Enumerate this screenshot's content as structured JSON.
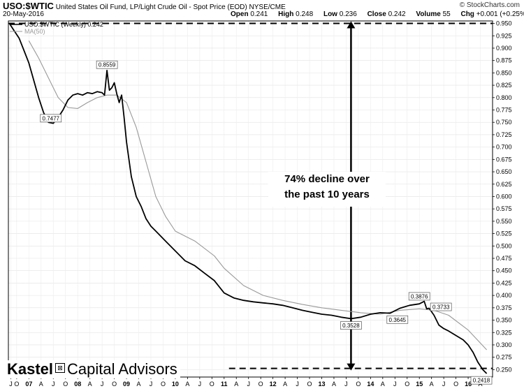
{
  "header": {
    "ticker": "USO:$WTIC",
    "description": "United States Oil Fund, LP/Light Crude Oil - Spot Price (EOD)",
    "exchange": "NYSE/CME",
    "date": "20-May-2016",
    "credit": "© StockCharts.com",
    "open_label": "Open",
    "open": "0.241",
    "high_label": "High",
    "high": "0.248",
    "low_label": "Low",
    "low": "0.236",
    "close_label": "Close",
    "close": "0.242",
    "volume_label": "Volume",
    "volume": "55",
    "chg_label": "Chg",
    "chg": "+0.001 (+0.25%)"
  },
  "legend": {
    "series_label": "USO:$WTIC (Weekly) 0.242",
    "ma_label": "MA(50)"
  },
  "annotation": {
    "line1": "74% decline over",
    "line2": "the past 10 years"
  },
  "logo": {
    "brand": "Kastel",
    "glyph": "⊠",
    "tagline": "Capital Advisors"
  },
  "colors": {
    "price": "#000000",
    "moving_average": "#999999",
    "background": "#ffffff"
  },
  "chart_data": {
    "type": "line",
    "ylim": [
      0.235,
      0.955
    ],
    "yticks": [
      0.25,
      0.275,
      0.3,
      0.325,
      0.35,
      0.375,
      0.4,
      0.425,
      0.45,
      0.475,
      0.5,
      0.525,
      0.55,
      0.575,
      0.6,
      0.625,
      0.65,
      0.675,
      0.7,
      0.725,
      0.75,
      0.775,
      0.8,
      0.825,
      0.85,
      0.875,
      0.9,
      0.925,
      0.95
    ],
    "ytick_labels": [
      "0.250",
      "0.275",
      "0.300",
      "0.325",
      "0.350",
      "0.375",
      "0.400",
      "0.425",
      "0.450",
      "0.475",
      "0.500",
      "0.525",
      "0.550",
      "0.575",
      "0.600",
      "0.625",
      "0.650",
      "0.675",
      "0.700",
      "0.725",
      "0.750",
      "0.775",
      "0.800",
      "0.825",
      "0.850",
      "0.875",
      "0.900",
      "0.925",
      "0.950"
    ],
    "xlim": [
      2006.58,
      2016.5
    ],
    "xticks": [
      {
        "x": 2006.63,
        "label": "J"
      },
      {
        "x": 2006.75,
        "label": "O"
      },
      {
        "x": 2007.0,
        "label": "07"
      },
      {
        "x": 2007.25,
        "label": "A"
      },
      {
        "x": 2007.5,
        "label": "J"
      },
      {
        "x": 2007.75,
        "label": "O"
      },
      {
        "x": 2008.0,
        "label": "08"
      },
      {
        "x": 2008.25,
        "label": "A"
      },
      {
        "x": 2008.5,
        "label": "J"
      },
      {
        "x": 2008.75,
        "label": "O"
      },
      {
        "x": 2009.0,
        "label": "09"
      },
      {
        "x": 2009.25,
        "label": "A"
      },
      {
        "x": 2009.5,
        "label": "J"
      },
      {
        "x": 2009.75,
        "label": "O"
      },
      {
        "x": 2010.0,
        "label": "10"
      },
      {
        "x": 2010.25,
        "label": "A"
      },
      {
        "x": 2010.5,
        "label": "J"
      },
      {
        "x": 2010.75,
        "label": "O"
      },
      {
        "x": 2011.0,
        "label": "11"
      },
      {
        "x": 2011.25,
        "label": "A"
      },
      {
        "x": 2011.5,
        "label": "J"
      },
      {
        "x": 2011.75,
        "label": "O"
      },
      {
        "x": 2012.0,
        "label": "12"
      },
      {
        "x": 2012.25,
        "label": "A"
      },
      {
        "x": 2012.5,
        "label": "J"
      },
      {
        "x": 2012.75,
        "label": "O"
      },
      {
        "x": 2013.0,
        "label": "13"
      },
      {
        "x": 2013.25,
        "label": "A"
      },
      {
        "x": 2013.5,
        "label": "J"
      },
      {
        "x": 2013.75,
        "label": "O"
      },
      {
        "x": 2014.0,
        "label": "14"
      },
      {
        "x": 2014.25,
        "label": "A"
      },
      {
        "x": 2014.5,
        "label": "J"
      },
      {
        "x": 2014.75,
        "label": "O"
      },
      {
        "x": 2015.0,
        "label": "15"
      },
      {
        "x": 2015.25,
        "label": "A"
      },
      {
        "x": 2015.5,
        "label": "J"
      },
      {
        "x": 2015.75,
        "label": "O"
      },
      {
        "x": 2016.0,
        "label": "16"
      },
      {
        "x": 2016.25,
        "label": "A"
      }
    ],
    "grid": true,
    "series": [
      {
        "name": "USO:$WTIC (Weekly)",
        "x": [
          2006.6,
          2006.7,
          2006.8,
          2006.9,
          2007.0,
          2007.1,
          2007.2,
          2007.3,
          2007.4,
          2007.5,
          2007.6,
          2007.7,
          2007.8,
          2007.9,
          2008.0,
          2008.1,
          2008.2,
          2008.3,
          2008.4,
          2008.5,
          2008.55,
          2008.6,
          2008.65,
          2008.7,
          2008.75,
          2008.8,
          2008.85,
          2008.9,
          2008.95,
          2009.0,
          2009.1,
          2009.2,
          2009.3,
          2009.4,
          2009.5,
          2009.6,
          2009.8,
          2010.0,
          2010.2,
          2010.4,
          2010.6,
          2010.8,
          2011.0,
          2011.2,
          2011.4,
          2011.6,
          2011.8,
          2012.0,
          2012.2,
          2012.4,
          2012.6,
          2012.8,
          2013.0,
          2013.2,
          2013.4,
          2013.6,
          2013.8,
          2014.0,
          2014.2,
          2014.4,
          2014.6,
          2014.8,
          2015.0,
          2015.1,
          2015.15,
          2015.2,
          2015.3,
          2015.4,
          2015.5,
          2015.6,
          2015.7,
          2015.8,
          2015.9,
          2016.0,
          2016.1,
          2016.2,
          2016.3,
          2016.38
        ],
        "values": [
          0.95,
          0.935,
          0.92,
          0.895,
          0.87,
          0.835,
          0.8,
          0.77,
          0.75,
          0.748,
          0.76,
          0.775,
          0.795,
          0.805,
          0.808,
          0.805,
          0.81,
          0.808,
          0.812,
          0.81,
          0.805,
          0.855,
          0.815,
          0.82,
          0.83,
          0.808,
          0.79,
          0.805,
          0.76,
          0.71,
          0.64,
          0.6,
          0.58,
          0.555,
          0.54,
          0.53,
          0.51,
          0.49,
          0.47,
          0.46,
          0.445,
          0.43,
          0.405,
          0.395,
          0.39,
          0.387,
          0.385,
          0.383,
          0.38,
          0.375,
          0.37,
          0.366,
          0.362,
          0.36,
          0.356,
          0.353,
          0.356,
          0.362,
          0.365,
          0.364,
          0.374,
          0.38,
          0.383,
          0.388,
          0.373,
          0.374,
          0.36,
          0.34,
          0.333,
          0.328,
          0.322,
          0.316,
          0.31,
          0.3,
          0.285,
          0.265,
          0.25,
          0.242
        ]
      },
      {
        "name": "MA(50)",
        "x": [
          2007.0,
          2007.2,
          2007.4,
          2007.6,
          2007.8,
          2008.0,
          2008.2,
          2008.4,
          2008.6,
          2008.8,
          2009.0,
          2009.2,
          2009.4,
          2009.6,
          2009.8,
          2010.0,
          2010.4,
          2010.8,
          2011.0,
          2011.4,
          2011.8,
          2012.2,
          2012.6,
          2013.0,
          2013.4,
          2013.8,
          2014.2,
          2014.6,
          2015.0,
          2015.3,
          2015.6,
          2016.0,
          2016.38
        ],
        "values": [
          0.915,
          0.88,
          0.84,
          0.8,
          0.78,
          0.778,
          0.79,
          0.8,
          0.805,
          0.805,
          0.79,
          0.74,
          0.67,
          0.6,
          0.56,
          0.53,
          0.51,
          0.48,
          0.455,
          0.42,
          0.4,
          0.39,
          0.382,
          0.375,
          0.37,
          0.365,
          0.362,
          0.37,
          0.373,
          0.37,
          0.36,
          0.33,
          0.29
        ]
      }
    ],
    "point_labels": [
      {
        "x": 2008.6,
        "y": 0.8559,
        "label": "0.8559"
      },
      {
        "x": 2007.45,
        "y": 0.7477,
        "label": "0.7477"
      },
      {
        "x": 2013.6,
        "y": 0.3528,
        "label": "0.3528"
      },
      {
        "x": 2014.55,
        "y": 0.3645,
        "label": "0.3645"
      },
      {
        "x": 2015.0,
        "y": 0.3876,
        "label": "0.3876"
      },
      {
        "x": 2015.2,
        "y": 0.3733,
        "label": "0.3733"
      },
      {
        "x": 2016.38,
        "y": 0.2418,
        "label": "0.2418"
      }
    ],
    "reference_lines": [
      {
        "y": 0.95,
        "x_start": 2006.58,
        "x_end": 2016.5
      },
      {
        "y": 0.2525,
        "x_start": 2011.1,
        "x_end": 2016.5
      }
    ],
    "arrow": {
      "x": 2013.6,
      "y_start": 0.95,
      "y_end": 0.2525
    }
  }
}
